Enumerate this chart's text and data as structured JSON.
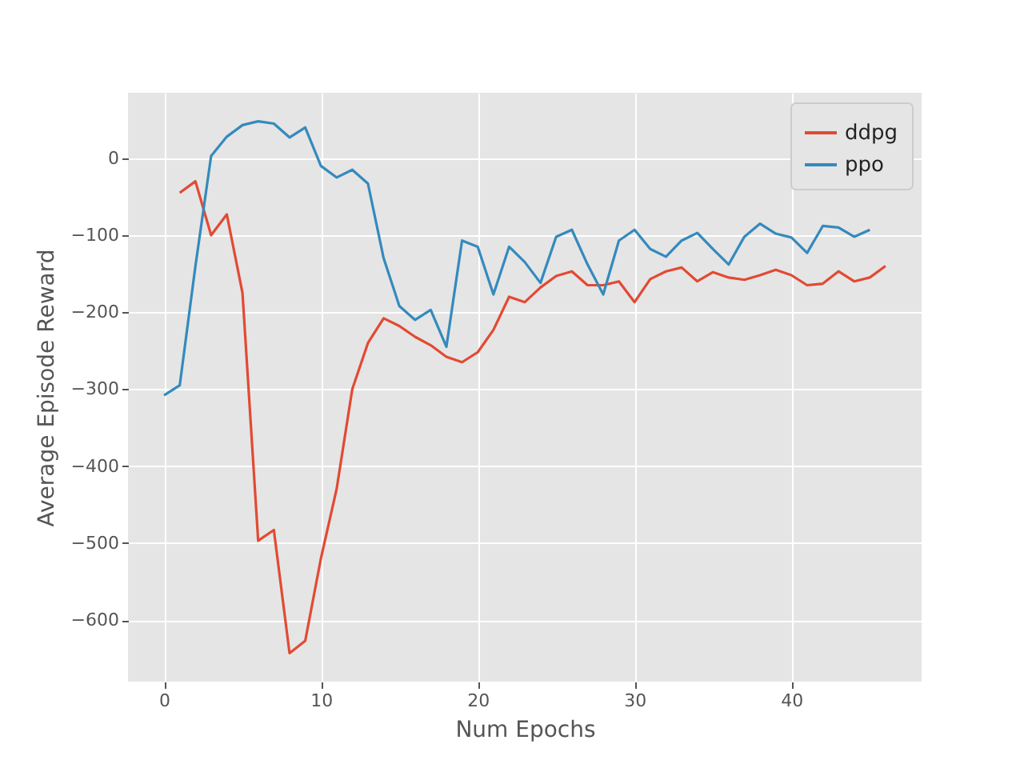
{
  "chart_data": {
    "type": "line",
    "xlabel": "Num Epochs",
    "ylabel": "Average Episode Reward",
    "xlim": [
      -2.3,
      48.3
    ],
    "ylim": [
      -680,
      85
    ],
    "xticks": [
      0,
      10,
      20,
      30,
      40
    ],
    "yticks": [
      -600,
      -500,
      -400,
      -300,
      -200,
      -100,
      0
    ],
    "grid": true,
    "legend": "top right",
    "series": [
      {
        "name": "ddpg",
        "color": "#e24a33",
        "x": [
          1,
          2,
          3,
          4,
          5,
          6,
          7,
          8,
          9,
          10,
          11,
          12,
          13,
          14,
          15,
          16,
          17,
          18,
          19,
          20,
          21,
          22,
          23,
          24,
          25,
          26,
          27,
          28,
          29,
          30,
          31,
          32,
          33,
          34,
          35,
          36,
          37,
          38,
          39,
          40,
          41,
          42,
          43,
          44,
          45,
          46
        ],
        "values": [
          -45,
          -30,
          -100,
          -73,
          -175,
          -497,
          -483,
          -643,
          -627,
          -520,
          -430,
          -300,
          -240,
          -208,
          -218,
          -232,
          -243,
          -258,
          -265,
          -252,
          -223,
          -180,
          -187,
          -168,
          -153,
          -147,
          -165,
          -165,
          -160,
          -187,
          -157,
          -147,
          -142,
          -160,
          -148,
          -155,
          -158,
          -152,
          -145,
          -152,
          -165,
          -163,
          -147,
          -160,
          -155,
          -140
        ]
      },
      {
        "name": "ppo",
        "color": "#348abd",
        "x": [
          0,
          1,
          2,
          3,
          4,
          5,
          6,
          7,
          8,
          9,
          10,
          11,
          12,
          13,
          14,
          15,
          16,
          17,
          18,
          19,
          20,
          21,
          22,
          23,
          24,
          25,
          26,
          27,
          28,
          29,
          30,
          31,
          32,
          33,
          34,
          35,
          36,
          37,
          38,
          39,
          40,
          41,
          42,
          43,
          44,
          45
        ],
        "values": [
          -308,
          -295,
          -140,
          3,
          28,
          43,
          48,
          45,
          27,
          40,
          -10,
          -25,
          -15,
          -33,
          -130,
          -192,
          -210,
          -197,
          -245,
          -107,
          -115,
          -177,
          -115,
          -135,
          -162,
          -102,
          -93,
          -138,
          -177,
          -107,
          -93,
          -118,
          -128,
          -107,
          -97,
          -118,
          -138,
          -102,
          -85,
          -98,
          -103,
          -123,
          -88,
          -90,
          -102,
          -93
        ]
      }
    ]
  }
}
